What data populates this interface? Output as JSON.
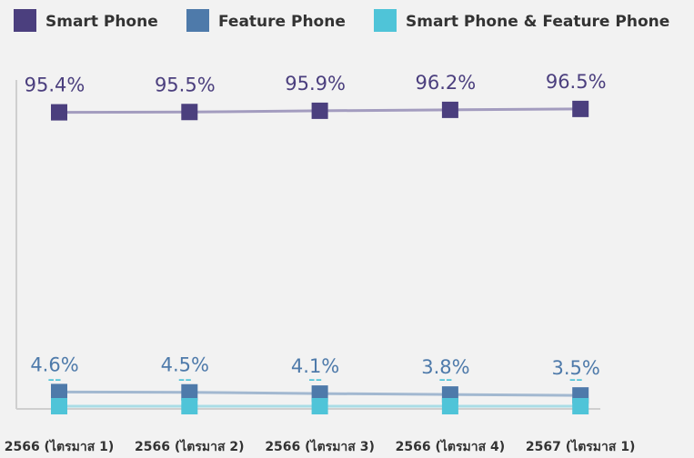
{
  "chart_data": {
    "type": "line",
    "categories": [
      "2566 (ไตรมาส 1)",
      "2566 (ไตรมาส 2)",
      "2566 (ไตรมาส 3)",
      "2566 (ไตรมาส 4)",
      "2567 (ไตรมาส 1)"
    ],
    "series": [
      {
        "name": "Smart Phone",
        "color": "#4b3f7e",
        "line_color": "#a39cbf",
        "values": [
          95.4,
          95.5,
          95.9,
          96.2,
          96.5
        ],
        "value_labels": [
          "95.4%",
          "95.5%",
          "95.9%",
          "96.2%",
          "96.5%"
        ]
      },
      {
        "name": "Feature Phone",
        "color": "#4e7aaa",
        "line_color": "#a2b8d0",
        "values": [
          4.6,
          4.5,
          4.1,
          3.8,
          3.5
        ],
        "value_labels": [
          "4.6%",
          "4.5%",
          "4.1%",
          "3.8%",
          "3.5%"
        ]
      },
      {
        "name": "Smart Phone & Feature Phone",
        "color": "#4fc4d8",
        "line_color": "#a9dde6",
        "values": [
          0,
          0,
          0,
          0,
          0
        ],
        "value_labels": [
          "--",
          "--",
          "--",
          "--",
          "--"
        ]
      }
    ],
    "ylim": [
      0,
      100
    ]
  }
}
